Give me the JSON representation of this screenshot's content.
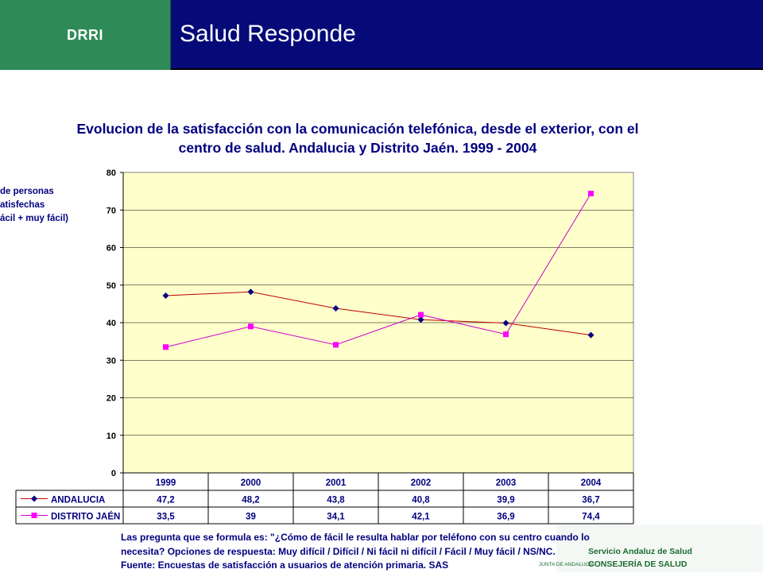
{
  "header": {
    "section": "DRRI",
    "title": "Salud Responde"
  },
  "chart_data": {
    "type": "line",
    "title_line1": "Evolucion de la satisfacción con la comunicación telefónica, desde el exterior, con el",
    "title_line2": "centro de salud. Andalucia y Distrito Jaén. 1999 - 2004",
    "ylabel_lines": [
      "de personas",
      "atisfechas",
      "ácil + muy fácil)"
    ],
    "categories": [
      "1999",
      "2000",
      "2001",
      "2002",
      "2003",
      "2004"
    ],
    "ylim": [
      0,
      80
    ],
    "yticks": [
      0,
      10,
      20,
      30,
      40,
      50,
      60,
      70,
      80
    ],
    "grid": true,
    "series": [
      {
        "name": "ANDALUCIA",
        "values": [
          47.2,
          48.2,
          43.8,
          40.8,
          39.9,
          36.7
        ],
        "labels": [
          "47,2",
          "48,2",
          "43,8",
          "40,8",
          "39,9",
          "36,7"
        ],
        "color": "#c00000",
        "marker_color": "#000080",
        "marker": "diamond"
      },
      {
        "name": "DISTRITO JAÉN",
        "values": [
          33.5,
          39,
          34.1,
          42.1,
          36.9,
          74.4
        ],
        "labels": [
          "33,5",
          "39",
          "34,1",
          "42,1",
          "36,9",
          "74,4"
        ],
        "color": "#cc00cc",
        "marker_color": "#ff00ff",
        "marker": "square"
      }
    ],
    "plot_background": "#ffffcc"
  },
  "footer": {
    "line1": "Las pregunta que se formula es: \"¿Cómo de fácil le resulta hablar por teléfono con su centro cuando lo",
    "line2": "necesita? Opciones de respuesta: Muy difícil / Difícil / Ni fácil ni difícil / Fácil / Muy fácil / NS/NC.",
    "line3": "Fuente: Encuestas de satisfacción a usuarios de atención primaria. SAS"
  },
  "logo": {
    "line1": "Servicio Andaluz de Salud",
    "line2": "CONSEJERÍA DE SALUD",
    "junta": "JUNTA DE ANDALUCIA"
  }
}
